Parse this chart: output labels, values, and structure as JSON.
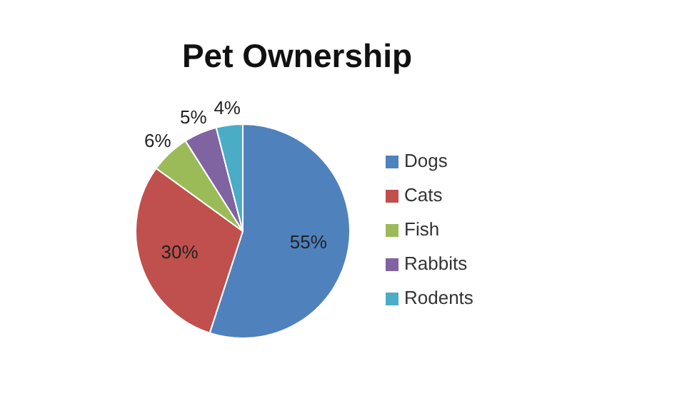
{
  "chart_data": {
    "type": "pie",
    "title": "Pet Ownership",
    "categories": [
      "Dogs",
      "Cats",
      "Fish",
      "Rabbits",
      "Rodents"
    ],
    "values": [
      55,
      30,
      6,
      5,
      4
    ],
    "value_labels": [
      "55%",
      "30%",
      "6%",
      "5%",
      "4%"
    ],
    "colors": [
      "#4f81bd",
      "#c0504d",
      "#9bbb59",
      "#8064a2",
      "#4bacc6"
    ],
    "legend": "right"
  }
}
